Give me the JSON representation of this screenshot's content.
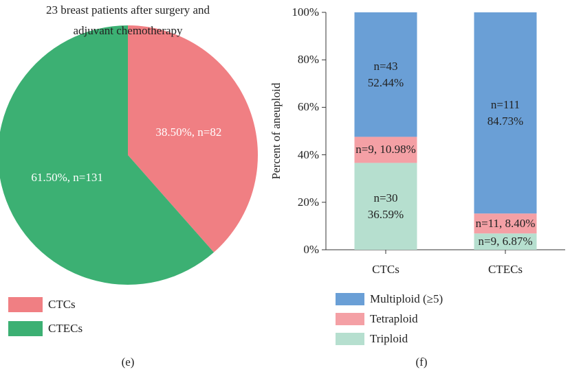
{
  "chart_data": [
    {
      "type": "pie",
      "title": "23 breast patients after surgery and adjuvant chemotherapy",
      "categories": [
        "CTCs",
        "CTECs"
      ],
      "values": [
        38.5,
        61.5
      ],
      "value_labels": [
        "38.50%, n=82",
        "61.50%, n=131"
      ],
      "colors": [
        "#f07f83",
        "#3cb073"
      ],
      "panel_label": "(e)"
    },
    {
      "type": "bar",
      "stacked": true,
      "categories": [
        "CTCs",
        "CTECs"
      ],
      "series": [
        {
          "name": "Triploid",
          "color": "#b6dfcf",
          "values": [
            36.59,
            6.87
          ],
          "value_labels": [
            "n=30\n36.59%",
            "n=9, 6.87%"
          ]
        },
        {
          "name": "Tetraploid",
          "color": "#f4a0a5",
          "values": [
            10.98,
            8.4
          ],
          "value_labels": [
            "n=9, 10.98%",
            "n=11, 8.40%"
          ]
        },
        {
          "name": "Multiploid (≥5)",
          "color": "#6a9fd6",
          "values": [
            52.44,
            84.73
          ],
          "value_labels": [
            "n=43\n52.44%",
            "n=111\n84.73%"
          ]
        }
      ],
      "ylabel": "Percent of aneuploid",
      "ylim": [
        0,
        100
      ],
      "yticks": [
        {
          "value": 0,
          "label": "0%"
        },
        {
          "value": 20,
          "label": "20%"
        },
        {
          "value": 40,
          "label": "40%"
        },
        {
          "value": 60,
          "label": "60%"
        },
        {
          "value": 80,
          "label": "80%"
        },
        {
          "value": 100,
          "label": "100%"
        }
      ],
      "panel_label": "(f)"
    }
  ]
}
